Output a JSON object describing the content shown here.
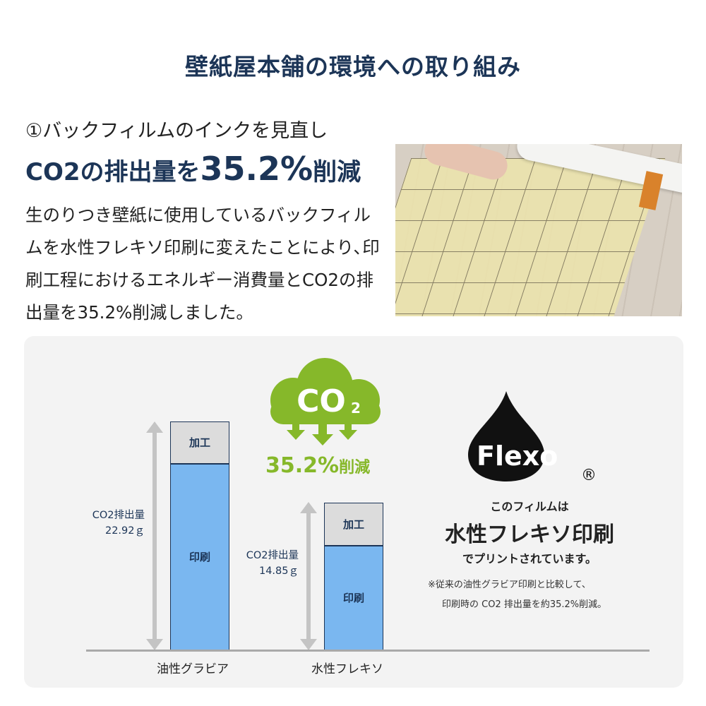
{
  "title": "壁紙屋本舗の環境への取り組み",
  "section": {
    "number": "①",
    "subtitle": "バックフィルムのインクを見直し",
    "headline_pre": "CO2の排出量を",
    "headline_value": "35.2%",
    "headline_post": "削減",
    "body": "生のりつき壁紙に使用しているバックフィルムを水性フレキソ印刷に変えたことにより､印刷工程におけるエネルギー消費量とCO2の排出量を35.2%削減しました。"
  },
  "photo": {
    "description_icon": "wallpaper-roll-photo"
  },
  "infographic": {
    "cloud_label": "CO",
    "cloud_subscript": "2",
    "reduction_value": "35.2%",
    "reduction_label": "削減",
    "logo_text": "Flexo",
    "logo_mark": "®",
    "film_line1": "このフィルムは",
    "film_line2": "水性フレキソ印刷",
    "film_line3": "でプリントされています。",
    "note_line1": "※従来の油性グラビア印刷と比較して、",
    "note_line2": "印刷時の CO2 排出量を約35.2%削減。",
    "colors": {
      "navy": "#1c3557",
      "green": "#86b82a",
      "print": "#7ab7f0",
      "processing": "#dcdcdc"
    }
  },
  "chart_data": {
    "type": "bar",
    "stacked": true,
    "categories": [
      "油性グラビア",
      "水性フレキソ"
    ],
    "series": [
      {
        "name": "印刷",
        "values": [
          18.7,
          10.5
        ]
      },
      {
        "name": "加工",
        "values": [
          4.2,
          4.3
        ]
      }
    ],
    "totals": [
      22.92,
      14.85
    ],
    "total_label": "CO2排出量",
    "total_labels": [
      "22.92ｇ",
      "14.85ｇ"
    ],
    "grid": false
  }
}
